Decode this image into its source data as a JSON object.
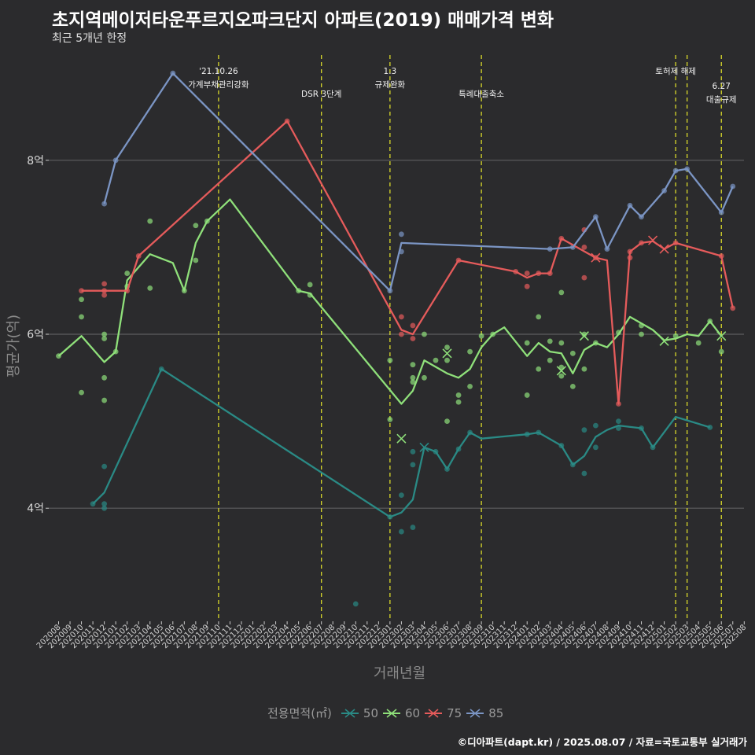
{
  "header": {
    "title": "초지역메이저타운푸르지오파크단지 아파트(2019) 매매가격 변화",
    "subtitle": "최근 5개년 한정"
  },
  "caption": "©디아파트(dapt.kr) / 2025.08.07 / 자료=국토교통부 실거래가",
  "chart_data": {
    "type": "line",
    "title": "초지역메이저타운푸르지오파크단지 아파트(2019) 매매가격 변화",
    "subtitle": "최근 5개년 한정",
    "xlabel": "거래년월",
    "ylabel": "평균가(억)",
    "ylim": [
      2.7,
      9.3
    ],
    "yticks": [
      4,
      6,
      8
    ],
    "ytick_labels": [
      "4억",
      "6억",
      "8억"
    ],
    "x_categories": [
      "202008",
      "202009",
      "202010",
      "202011",
      "202012",
      "202101",
      "202102",
      "202103",
      "202104",
      "202105",
      "202106",
      "202107",
      "202108",
      "202109",
      "202110",
      "202111",
      "202112",
      "202201",
      "202202",
      "202203",
      "202204",
      "202205",
      "202206",
      "202207",
      "202208",
      "202209",
      "202210",
      "202211",
      "202212",
      "202301",
      "202302",
      "202303",
      "202304",
      "202305",
      "202306",
      "202307",
      "202308",
      "202309",
      "202310",
      "202311",
      "202312",
      "202401",
      "202402",
      "202403",
      "202404",
      "202405",
      "202406",
      "202407",
      "202408",
      "202409",
      "202410",
      "202411",
      "202412",
      "202501",
      "202502",
      "202503",
      "202504",
      "202505",
      "202506",
      "202507",
      "202508"
    ],
    "legend_title": "전용면적(㎡)",
    "legend_position": "bottom",
    "grid": true,
    "annotations": [
      {
        "x": "202110",
        "label": "'21.10.26\n가계부채관리강화"
      },
      {
        "x": "202207",
        "label": "DSR 3단계"
      },
      {
        "x": "202301",
        "label": "1.3\n규제완화"
      },
      {
        "x": "202309",
        "label": "특례대출축소"
      },
      {
        "x": "202502",
        "label": "토허제 해제"
      },
      {
        "x": "202503",
        "label": ""
      },
      {
        "x": "202506",
        "label": "6.27\n대출규제"
      }
    ],
    "series": [
      {
        "name": "50",
        "color": "#2a8a85",
        "line": [
          [
            "202011",
            4.05
          ],
          [
            "202012",
            4.18
          ],
          [
            "202105",
            5.6
          ],
          [
            "202301",
            3.9
          ],
          [
            "202302",
            3.95
          ],
          [
            "202303",
            4.1
          ],
          [
            "202304",
            4.7
          ],
          [
            "202305",
            4.65
          ],
          [
            "202306",
            4.45
          ],
          [
            "202307",
            4.68
          ],
          [
            "202308",
            4.87
          ],
          [
            "202309",
            4.8
          ],
          [
            "202401",
            4.85
          ],
          [
            "202402",
            4.87
          ],
          [
            "202404",
            4.72
          ],
          [
            "202405",
            4.5
          ],
          [
            "202406",
            4.6
          ],
          [
            "202407",
            4.82
          ],
          [
            "202408",
            4.9
          ],
          [
            "202409",
            4.95
          ],
          [
            "202411",
            4.92
          ],
          [
            "202412",
            4.7
          ],
          [
            "202502",
            5.05
          ],
          [
            "202505",
            4.93
          ]
        ],
        "points": [
          [
            "202011",
            4.05
          ],
          [
            "202012",
            4.05
          ],
          [
            "202012",
            4.0
          ],
          [
            "202012",
            4.48
          ],
          [
            "202105",
            5.6
          ],
          [
            "202210",
            2.9
          ],
          [
            "202301",
            3.9
          ],
          [
            "202302",
            4.15
          ],
          [
            "202302",
            3.73
          ],
          [
            "202303",
            3.78
          ],
          [
            "202303",
            4.5
          ],
          [
            "202303",
            4.65
          ],
          [
            "202305",
            4.65
          ],
          [
            "202306",
            4.45
          ],
          [
            "202307",
            4.68
          ],
          [
            "202308",
            4.87
          ],
          [
            "202401",
            4.85
          ],
          [
            "202402",
            4.87
          ],
          [
            "202404",
            4.72
          ],
          [
            "202405",
            4.5
          ],
          [
            "202406",
            4.4
          ],
          [
            "202406",
            4.9
          ],
          [
            "202407",
            4.95
          ],
          [
            "202407",
            4.7
          ],
          [
            "202409",
            4.92
          ],
          [
            "202409",
            5.0
          ],
          [
            "202411",
            4.92
          ],
          [
            "202412",
            4.7
          ],
          [
            "202505",
            4.93
          ]
        ],
        "crosses": [
          [
            "202304",
            4.7
          ]
        ]
      },
      {
        "name": "60",
        "color": "#8fe07a",
        "line": [
          [
            "202008",
            5.75
          ],
          [
            "202010",
            5.98
          ],
          [
            "202012",
            5.68
          ],
          [
            "202101",
            5.8
          ],
          [
            "202102",
            6.62
          ],
          [
            "202104",
            6.92
          ],
          [
            "202106",
            6.82
          ],
          [
            "202107",
            6.5
          ],
          [
            "202108",
            7.05
          ],
          [
            "202109",
            7.3
          ],
          [
            "202111",
            7.55
          ],
          [
            "202205",
            6.5
          ],
          [
            "202206",
            6.47
          ],
          [
            "202302",
            5.2
          ],
          [
            "202303",
            5.35
          ],
          [
            "202304",
            5.7
          ],
          [
            "202306",
            5.55
          ],
          [
            "202307",
            5.5
          ],
          [
            "202308",
            5.6
          ],
          [
            "202309",
            5.85
          ],
          [
            "202310",
            6.0
          ],
          [
            "202311",
            6.08
          ],
          [
            "202401",
            5.75
          ],
          [
            "202402",
            5.9
          ],
          [
            "202403",
            5.8
          ],
          [
            "202404",
            5.78
          ],
          [
            "202405",
            5.55
          ],
          [
            "202406",
            5.82
          ],
          [
            "202407",
            5.9
          ],
          [
            "202408",
            5.85
          ],
          [
            "202409",
            6.0
          ],
          [
            "202410",
            6.2
          ],
          [
            "202412",
            6.05
          ],
          [
            "202501",
            5.93
          ],
          [
            "202502",
            5.95
          ],
          [
            "202503",
            6.0
          ],
          [
            "202504",
            5.98
          ],
          [
            "202505",
            6.15
          ],
          [
            "202506",
            5.98
          ]
        ],
        "points": [
          [
            "202008",
            5.75
          ],
          [
            "202010",
            6.4
          ],
          [
            "202010",
            6.2
          ],
          [
            "202010",
            5.33
          ],
          [
            "202012",
            6.0
          ],
          [
            "202012",
            5.95
          ],
          [
            "202012",
            5.5
          ],
          [
            "202012",
            5.24
          ],
          [
            "202101",
            5.8
          ],
          [
            "202102",
            6.7
          ],
          [
            "202102",
            6.55
          ],
          [
            "202104",
            7.3
          ],
          [
            "202104",
            6.53
          ],
          [
            "202107",
            6.5
          ],
          [
            "202108",
            7.25
          ],
          [
            "202108",
            6.85
          ],
          [
            "202109",
            7.3
          ],
          [
            "202205",
            6.5
          ],
          [
            "202206",
            6.57
          ],
          [
            "202206",
            6.45
          ],
          [
            "202301",
            5.7
          ],
          [
            "202301",
            5.02
          ],
          [
            "202303",
            5.65
          ],
          [
            "202303",
            5.5
          ],
          [
            "202303",
            5.45
          ],
          [
            "202304",
            5.5
          ],
          [
            "202304",
            6.0
          ],
          [
            "202305",
            5.7
          ],
          [
            "202306",
            5.85
          ],
          [
            "202306",
            5.7
          ],
          [
            "202306",
            5.0
          ],
          [
            "202307",
            5.3
          ],
          [
            "202307",
            5.22
          ],
          [
            "202308",
            5.8
          ],
          [
            "202308",
            5.4
          ],
          [
            "202309",
            5.98
          ],
          [
            "202310",
            6.0
          ],
          [
            "202401",
            5.9
          ],
          [
            "202401",
            5.3
          ],
          [
            "202402",
            6.2
          ],
          [
            "202402",
            5.6
          ],
          [
            "202403",
            5.92
          ],
          [
            "202403",
            5.7
          ],
          [
            "202404",
            6.48
          ],
          [
            "202404",
            5.9
          ],
          [
            "202404",
            5.62
          ],
          [
            "202404",
            5.52
          ],
          [
            "202405",
            5.78
          ],
          [
            "202405",
            5.4
          ],
          [
            "202406",
            5.6
          ],
          [
            "202406",
            6.0
          ],
          [
            "202407",
            5.9
          ],
          [
            "202409",
            6.02
          ],
          [
            "202411",
            6.1
          ],
          [
            "202411",
            6.0
          ],
          [
            "202502",
            5.98
          ],
          [
            "202504",
            5.9
          ],
          [
            "202505",
            6.15
          ],
          [
            "202506",
            5.8
          ]
        ],
        "crosses": [
          [
            "202302",
            4.8
          ],
          [
            "202306",
            5.78
          ],
          [
            "202404",
            5.58
          ],
          [
            "202406",
            5.98
          ],
          [
            "202501",
            5.92
          ],
          [
            "202506",
            5.98
          ]
        ]
      },
      {
        "name": "75",
        "color": "#e55b5b",
        "line": [
          [
            "202010",
            6.5
          ],
          [
            "202102",
            6.5
          ],
          [
            "202103",
            6.9
          ],
          [
            "202204",
            8.45
          ],
          [
            "202302",
            6.05
          ],
          [
            "202303",
            6.0
          ],
          [
            "202307",
            6.85
          ],
          [
            "202312",
            6.72
          ],
          [
            "202401",
            6.65
          ],
          [
            "202402",
            6.7
          ],
          [
            "202403",
            6.7
          ],
          [
            "202404",
            7.1
          ],
          [
            "202407",
            6.88
          ],
          [
            "202408",
            6.85
          ],
          [
            "202409",
            5.2
          ],
          [
            "202410",
            6.95
          ],
          [
            "202411",
            7.05
          ],
          [
            "202412",
            7.07
          ],
          [
            "202501",
            6.98
          ],
          [
            "202502",
            7.05
          ],
          [
            "202506",
            6.9
          ],
          [
            "202507",
            6.3
          ]
        ],
        "points": [
          [
            "202010",
            6.5
          ],
          [
            "202012",
            6.58
          ],
          [
            "202012",
            6.5
          ],
          [
            "202012",
            6.45
          ],
          [
            "202102",
            6.5
          ],
          [
            "202103",
            6.9
          ],
          [
            "202204",
            8.45
          ],
          [
            "202302",
            6.2
          ],
          [
            "202302",
            6.0
          ],
          [
            "202303",
            6.1
          ],
          [
            "202303",
            5.95
          ],
          [
            "202307",
            6.85
          ],
          [
            "202312",
            6.72
          ],
          [
            "202401",
            6.7
          ],
          [
            "202401",
            6.55
          ],
          [
            "202402",
            6.7
          ],
          [
            "202403",
            6.7
          ],
          [
            "202404",
            7.1
          ],
          [
            "202406",
            7.2
          ],
          [
            "202406",
            7.0
          ],
          [
            "202406",
            6.65
          ],
          [
            "202407",
            6.88
          ],
          [
            "202409",
            5.2
          ],
          [
            "202410",
            6.95
          ],
          [
            "202410",
            6.88
          ],
          [
            "202411",
            7.05
          ],
          [
            "202502",
            7.05
          ],
          [
            "202506",
            6.9
          ],
          [
            "202507",
            6.3
          ]
        ],
        "crosses": [
          [
            "202407",
            6.88
          ],
          [
            "202412",
            7.08
          ],
          [
            "202501",
            6.98
          ]
        ]
      },
      {
        "name": "85",
        "color": "#7b95c4",
        "line": [
          [
            "202012",
            7.5
          ],
          [
            "202101",
            8.0
          ],
          [
            "202106",
            9.0
          ],
          [
            "202301",
            6.5
          ],
          [
            "202302",
            7.05
          ],
          [
            "202403",
            6.98
          ],
          [
            "202405",
            7.0
          ],
          [
            "202407",
            7.35
          ],
          [
            "202408",
            6.98
          ],
          [
            "202410",
            7.48
          ],
          [
            "202411",
            7.35
          ],
          [
            "202501",
            7.65
          ],
          [
            "202502",
            7.88
          ],
          [
            "202503",
            7.9
          ],
          [
            "202506",
            7.4
          ],
          [
            "202507",
            7.7
          ]
        ],
        "points": [
          [
            "202012",
            7.5
          ],
          [
            "202101",
            8.0
          ],
          [
            "202106",
            9.0
          ],
          [
            "202301",
            6.5
          ],
          [
            "202302",
            7.15
          ],
          [
            "202302",
            6.95
          ],
          [
            "202403",
            6.98
          ],
          [
            "202405",
            7.0
          ],
          [
            "202407",
            7.35
          ],
          [
            "202408",
            6.98
          ],
          [
            "202410",
            7.48
          ],
          [
            "202411",
            7.35
          ],
          [
            "202501",
            7.65
          ],
          [
            "202502",
            7.88
          ],
          [
            "202503",
            7.9
          ],
          [
            "202506",
            7.4
          ],
          [
            "202507",
            7.7
          ]
        ],
        "crosses": []
      }
    ]
  }
}
